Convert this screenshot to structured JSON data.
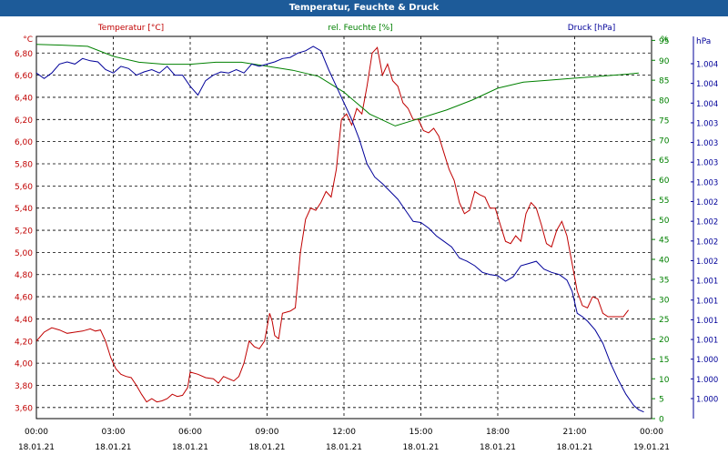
{
  "window": {
    "title": "Temperatur, Feuchte & Druck"
  },
  "colors": {
    "temperature": "#c00000",
    "humidity": "#008000",
    "pressure": "#000099",
    "header": "#1d5b99",
    "axis": "#333333"
  },
  "chart_data": {
    "type": "line",
    "title": "Temperatur, Feuchte & Druck",
    "grid": true,
    "x_tick_labels": [
      {
        "time": "00:00",
        "date": "18.01.21"
      },
      {
        "time": "03:00",
        "date": "18.01.21"
      },
      {
        "time": "06:00",
        "date": "18.01.21"
      },
      {
        "time": "09:00",
        "date": "18.01.21"
      },
      {
        "time": "12:00",
        "date": "18.01.21"
      },
      {
        "time": "15:00",
        "date": "18.01.21"
      },
      {
        "time": "18:00",
        "date": "18.01.21"
      },
      {
        "time": "21:00",
        "date": "18.01.21"
      },
      {
        "time": "00:00",
        "date": "19.01.21"
      }
    ],
    "axes": {
      "left": {
        "unit": "°C",
        "range": [
          3.5,
          6.95
        ],
        "ticks": [
          "3,60",
          "3,80",
          "4,00",
          "4,20",
          "4,40",
          "4,60",
          "4,80",
          "5,00",
          "5,20",
          "5,40",
          "5,60",
          "5,80",
          "6,00",
          "6,20",
          "6,40",
          "6,60",
          "6,80"
        ]
      },
      "mid": {
        "unit": "%",
        "range": [
          0,
          96
        ],
        "ticks": [
          "0",
          "5",
          "10",
          "15",
          "20",
          "25",
          "30",
          "35",
          "40",
          "45",
          "50",
          "55",
          "60",
          "65",
          "70",
          "75",
          "80",
          "85",
          "90",
          "95"
        ]
      },
      "right": {
        "unit": "hPa",
        "ticks": [
          "1.000",
          "1.000",
          "1.000",
          "1.001",
          "1.001",
          "1.001",
          "1.001",
          "1.002",
          "1.002",
          "1.002",
          "1.002",
          "1.003",
          "1.003",
          "1.003",
          "1.003",
          "1.004",
          "1.004",
          "1.004"
        ]
      }
    },
    "series": [
      {
        "name": "Temperatur [°C]",
        "axis": "left",
        "points": [
          [
            0,
            4.2
          ],
          [
            0.3,
            4.28
          ],
          [
            0.6,
            4.32
          ],
          [
            0.9,
            4.3
          ],
          [
            1.2,
            4.27
          ],
          [
            1.5,
            4.28
          ],
          [
            1.8,
            4.29
          ],
          [
            2.1,
            4.31
          ],
          [
            2.3,
            4.29
          ],
          [
            2.5,
            4.3
          ],
          [
            2.7,
            4.2
          ],
          [
            2.9,
            4.05
          ],
          [
            3.1,
            3.95
          ],
          [
            3.3,
            3.9
          ],
          [
            3.5,
            3.88
          ],
          [
            3.7,
            3.87
          ],
          [
            3.9,
            3.8
          ],
          [
            4.1,
            3.72
          ],
          [
            4.3,
            3.65
          ],
          [
            4.5,
            3.68
          ],
          [
            4.7,
            3.65
          ],
          [
            4.9,
            3.66
          ],
          [
            5.1,
            3.68
          ],
          [
            5.3,
            3.72
          ],
          [
            5.5,
            3.7
          ],
          [
            5.7,
            3.71
          ],
          [
            5.9,
            3.78
          ],
          [
            6.0,
            3.92
          ],
          [
            6.3,
            3.9
          ],
          [
            6.6,
            3.87
          ],
          [
            6.9,
            3.86
          ],
          [
            7.1,
            3.82
          ],
          [
            7.3,
            3.88
          ],
          [
            7.5,
            3.86
          ],
          [
            7.7,
            3.84
          ],
          [
            7.9,
            3.88
          ],
          [
            8.1,
            4.0
          ],
          [
            8.3,
            4.2
          ],
          [
            8.5,
            4.15
          ],
          [
            8.7,
            4.13
          ],
          [
            8.9,
            4.2
          ],
          [
            9.1,
            4.45
          ],
          [
            9.2,
            4.38
          ],
          [
            9.3,
            4.25
          ],
          [
            9.45,
            4.22
          ],
          [
            9.6,
            4.45
          ],
          [
            9.9,
            4.47
          ],
          [
            10.1,
            4.5
          ],
          [
            10.3,
            5.0
          ],
          [
            10.5,
            5.3
          ],
          [
            10.7,
            5.4
          ],
          [
            10.9,
            5.38
          ],
          [
            11.1,
            5.45
          ],
          [
            11.3,
            5.55
          ],
          [
            11.5,
            5.5
          ],
          [
            11.7,
            5.75
          ],
          [
            11.9,
            6.2
          ],
          [
            12.1,
            6.25
          ],
          [
            12.3,
            6.15
          ],
          [
            12.5,
            6.3
          ],
          [
            12.7,
            6.25
          ],
          [
            12.9,
            6.5
          ],
          [
            13.1,
            6.8
          ],
          [
            13.3,
            6.85
          ],
          [
            13.5,
            6.6
          ],
          [
            13.7,
            6.7
          ],
          [
            13.9,
            6.55
          ],
          [
            14.1,
            6.5
          ],
          [
            14.3,
            6.35
          ],
          [
            14.5,
            6.3
          ],
          [
            14.7,
            6.2
          ],
          [
            14.9,
            6.2
          ],
          [
            15.1,
            6.1
          ],
          [
            15.3,
            6.08
          ],
          [
            15.5,
            6.12
          ],
          [
            15.7,
            6.05
          ],
          [
            15.9,
            5.9
          ],
          [
            16.1,
            5.75
          ],
          [
            16.3,
            5.65
          ],
          [
            16.5,
            5.45
          ],
          [
            16.7,
            5.35
          ],
          [
            16.9,
            5.38
          ],
          [
            17.1,
            5.55
          ],
          [
            17.3,
            5.52
          ],
          [
            17.5,
            5.5
          ],
          [
            17.7,
            5.4
          ],
          [
            17.9,
            5.4
          ],
          [
            18.1,
            5.25
          ],
          [
            18.3,
            5.1
          ],
          [
            18.5,
            5.08
          ],
          [
            18.7,
            5.15
          ],
          [
            18.9,
            5.1
          ],
          [
            19.1,
            5.35
          ],
          [
            19.3,
            5.45
          ],
          [
            19.5,
            5.4
          ],
          [
            19.7,
            5.25
          ],
          [
            19.9,
            5.08
          ],
          [
            20.1,
            5.05
          ],
          [
            20.3,
            5.2
          ],
          [
            20.5,
            5.28
          ],
          [
            20.7,
            5.15
          ],
          [
            20.9,
            4.9
          ],
          [
            21.1,
            4.65
          ],
          [
            21.3,
            4.52
          ],
          [
            21.5,
            4.5
          ],
          [
            21.7,
            4.6
          ],
          [
            21.9,
            4.58
          ],
          [
            22.1,
            4.45
          ],
          [
            22.3,
            4.42
          ],
          [
            22.5,
            4.42
          ],
          [
            22.7,
            4.42
          ],
          [
            22.9,
            4.42
          ],
          [
            23.1,
            4.48
          ]
        ]
      },
      {
        "name": "rel. Feuchte [%]",
        "axis": "mid",
        "points": [
          [
            0,
            94
          ],
          [
            1,
            93.8
          ],
          [
            2,
            93.5
          ],
          [
            3,
            91
          ],
          [
            4,
            89.5
          ],
          [
            5,
            89
          ],
          [
            6,
            89
          ],
          [
            7,
            89.5
          ],
          [
            8,
            89.5
          ],
          [
            9,
            88.5
          ],
          [
            10,
            87.5
          ],
          [
            11,
            86
          ],
          [
            12,
            82
          ],
          [
            13,
            76.5
          ],
          [
            14,
            73.5
          ],
          [
            15,
            75.5
          ],
          [
            16,
            77.5
          ],
          [
            17,
            80
          ],
          [
            18,
            83
          ],
          [
            19,
            84.5
          ],
          [
            20,
            85
          ],
          [
            21,
            85.5
          ],
          [
            22,
            86
          ],
          [
            23,
            86.5
          ],
          [
            23.5,
            86.8
          ]
        ]
      },
      {
        "name": "Druck [hPa]",
        "axis": "right",
        "points": [
          [
            0,
            6.62
          ],
          [
            0.3,
            6.57
          ],
          [
            0.6,
            6.62
          ],
          [
            0.9,
            6.7
          ],
          [
            1.2,
            6.72
          ],
          [
            1.5,
            6.7
          ],
          [
            1.8,
            6.75
          ],
          [
            2.1,
            6.73
          ],
          [
            2.4,
            6.72
          ],
          [
            2.7,
            6.65
          ],
          [
            3.0,
            6.62
          ],
          [
            3.3,
            6.68
          ],
          [
            3.6,
            6.66
          ],
          [
            3.9,
            6.6
          ],
          [
            4.2,
            6.63
          ],
          [
            4.5,
            6.65
          ],
          [
            4.8,
            6.62
          ],
          [
            5.1,
            6.68
          ],
          [
            5.4,
            6.6
          ],
          [
            5.7,
            6.6
          ],
          [
            6.0,
            6.5
          ],
          [
            6.3,
            6.42
          ],
          [
            6.6,
            6.55
          ],
          [
            6.9,
            6.6
          ],
          [
            7.2,
            6.63
          ],
          [
            7.5,
            6.62
          ],
          [
            7.8,
            6.65
          ],
          [
            8.1,
            6.62
          ],
          [
            8.4,
            6.7
          ],
          [
            8.7,
            6.68
          ],
          [
            9.0,
            6.7
          ],
          [
            9.3,
            6.72
          ],
          [
            9.6,
            6.75
          ],
          [
            9.9,
            6.76
          ],
          [
            10.2,
            6.8
          ],
          [
            10.5,
            6.82
          ],
          [
            10.8,
            6.86
          ],
          [
            11.1,
            6.82
          ],
          [
            11.4,
            6.65
          ],
          [
            11.7,
            6.5
          ],
          [
            12.0,
            6.35
          ],
          [
            12.3,
            6.2
          ],
          [
            12.6,
            6.02
          ],
          [
            12.9,
            5.8
          ],
          [
            13.2,
            5.68
          ],
          [
            13.5,
            5.62
          ],
          [
            13.8,
            5.55
          ],
          [
            14.1,
            5.48
          ],
          [
            14.4,
            5.38
          ],
          [
            14.7,
            5.28
          ],
          [
            15.0,
            5.27
          ],
          [
            15.3,
            5.22
          ],
          [
            15.6,
            5.15
          ],
          [
            15.9,
            5.1
          ],
          [
            16.2,
            5.05
          ],
          [
            16.5,
            4.95
          ],
          [
            16.8,
            4.92
          ],
          [
            17.1,
            4.88
          ],
          [
            17.4,
            4.82
          ],
          [
            17.7,
            4.8
          ],
          [
            18.0,
            4.79
          ],
          [
            18.3,
            4.74
          ],
          [
            18.6,
            4.78
          ],
          [
            18.9,
            4.88
          ],
          [
            19.2,
            4.9
          ],
          [
            19.5,
            4.92
          ],
          [
            19.8,
            4.85
          ],
          [
            20.1,
            4.82
          ],
          [
            20.4,
            4.8
          ],
          [
            20.7,
            4.75
          ],
          [
            20.9,
            4.65
          ],
          [
            21.1,
            4.45
          ],
          [
            21.3,
            4.42
          ],
          [
            21.5,
            4.38
          ],
          [
            21.8,
            4.3
          ],
          [
            22.1,
            4.18
          ],
          [
            22.4,
            4.0
          ],
          [
            22.7,
            3.85
          ],
          [
            23.0,
            3.72
          ],
          [
            23.3,
            3.62
          ],
          [
            23.5,
            3.58
          ],
          [
            23.7,
            3.56
          ]
        ]
      }
    ]
  }
}
